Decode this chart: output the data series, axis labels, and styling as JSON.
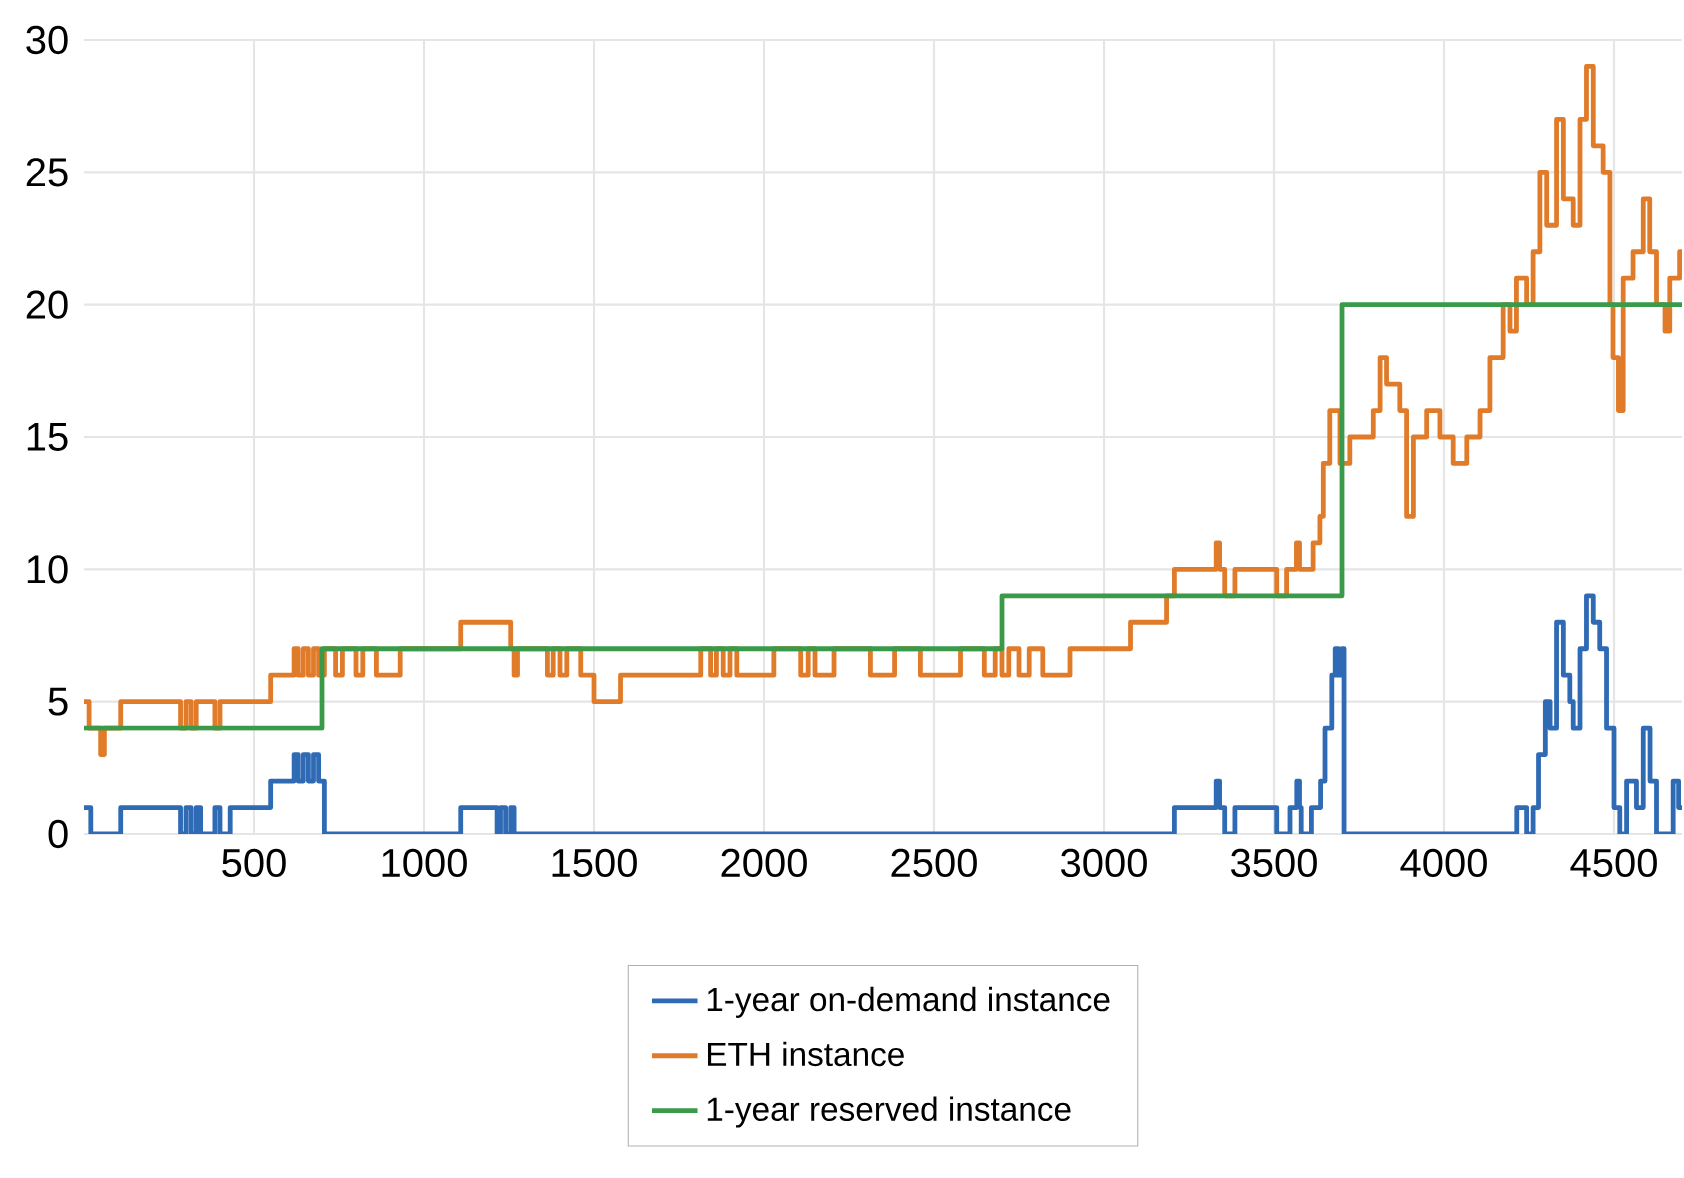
{
  "chart_data": {
    "type": "step",
    "xlim": [
      0,
      4700
    ],
    "ylim": [
      0,
      30
    ],
    "xticks": [
      500,
      1000,
      1500,
      2000,
      2500,
      3000,
      3500,
      4000,
      4500
    ],
    "yticks": [
      0,
      5,
      10,
      15,
      20,
      25,
      30
    ],
    "grid": true,
    "legend": "bottom",
    "marker": "none",
    "line_style": "solid",
    "series": [
      {
        "name": "1-year on-demand instance",
        "color": "#2f6ab4",
        "x": [
          0,
          20,
          108,
          284,
          300,
          315,
          330,
          343,
          385,
          400,
          430,
          549,
          618,
          630,
          645,
          660,
          675,
          690,
          707,
          1108,
          1215,
          1225,
          1240,
          1255,
          1265,
          3207,
          3330,
          3340,
          3355,
          3385,
          3508,
          3547,
          3567,
          3575,
          3580,
          3610,
          3637,
          3650,
          3670,
          3680,
          3690,
          3700,
          3706,
          4214,
          4243,
          4262,
          4278,
          4298,
          4312,
          4331,
          4351,
          4370,
          4380,
          4400,
          4419,
          4439,
          4458,
          4478,
          4500,
          4517,
          4537,
          4566,
          4586,
          4606,
          4625,
          4655,
          4674,
          4690,
          4700
        ],
        "values": [
          1,
          0,
          1,
          0,
          1,
          0,
          1,
          0,
          1,
          0,
          1,
          2,
          3,
          2,
          3,
          2,
          3,
          2,
          0,
          1,
          0,
          1,
          0,
          1,
          0,
          1,
          2,
          1,
          0,
          1,
          0,
          1,
          2,
          1,
          0,
          1,
          2,
          4,
          6,
          7,
          6,
          7,
          0,
          1,
          0,
          1,
          3,
          5,
          4,
          8,
          6,
          5,
          4,
          7,
          9,
          8,
          7,
          4,
          1,
          0,
          2,
          1,
          4,
          2,
          0,
          0,
          2,
          1,
          1
        ]
      },
      {
        "name": "ETH instance",
        "color": "#e07b2a",
        "x": [
          0,
          15,
          30,
          49,
          60,
          108,
          284,
          300,
          315,
          330,
          385,
          400,
          430,
          549,
          618,
          630,
          645,
          660,
          675,
          690,
          707,
          740,
          760,
          800,
          820,
          860,
          930,
          1108,
          1255,
          1265,
          1275,
          1363,
          1380,
          1400,
          1420,
          1461,
          1500,
          1578,
          1814,
          1843,
          1860,
          1880,
          1900,
          1920,
          2029,
          2108,
          2130,
          2150,
          2206,
          2313,
          2384,
          2460,
          2578,
          2648,
          2680,
          2700,
          2720,
          2750,
          2780,
          2820,
          2900,
          3078,
          3184,
          3207,
          3330,
          3340,
          3355,
          3385,
          3508,
          3537,
          3566,
          3575,
          3615,
          3635,
          3645,
          3664,
          3694,
          3723,
          3792,
          3812,
          3831,
          3870,
          3890,
          3910,
          3949,
          3988,
          4027,
          4067,
          4106,
          4135,
          4174,
          4194,
          4213,
          4243,
          4262,
          4282,
          4302,
          4331,
          4351,
          4380,
          4400,
          4419,
          4439,
          4468,
          4488,
          4497,
          4513,
          4527,
          4556,
          4586,
          4605,
          4625,
          4650,
          4664,
          4693,
          4700
        ],
        "values": [
          5,
          4,
          4,
          3,
          4,
          5,
          4,
          5,
          4,
          5,
          4,
          5,
          5,
          6,
          7,
          6,
          7,
          6,
          7,
          6,
          7,
          6,
          7,
          6,
          7,
          6,
          7,
          8,
          7,
          6,
          7,
          6,
          7,
          6,
          7,
          6,
          5,
          6,
          7,
          6,
          7,
          6,
          7,
          6,
          7,
          6,
          7,
          6,
          7,
          6,
          7,
          6,
          7,
          6,
          7,
          6,
          7,
          6,
          7,
          6,
          7,
          8,
          9,
          10,
          11,
          10,
          9,
          10,
          9,
          10,
          11,
          10,
          11,
          12,
          14,
          16,
          14,
          15,
          16,
          18,
          17,
          16,
          12,
          15,
          16,
          15,
          14,
          15,
          16,
          18,
          20,
          19,
          21,
          20,
          22,
          25,
          23,
          27,
          24,
          23,
          27,
          29,
          26,
          25,
          20,
          18,
          16,
          21,
          22,
          24,
          22,
          20,
          19,
          21,
          22,
          22
        ]
      },
      {
        "name": "1-year reserved instance",
        "color": "#3a9a4a",
        "x": [
          0,
          700,
          2700,
          3700,
          4700
        ],
        "values": [
          4,
          7,
          9,
          20,
          20
        ]
      }
    ]
  }
}
